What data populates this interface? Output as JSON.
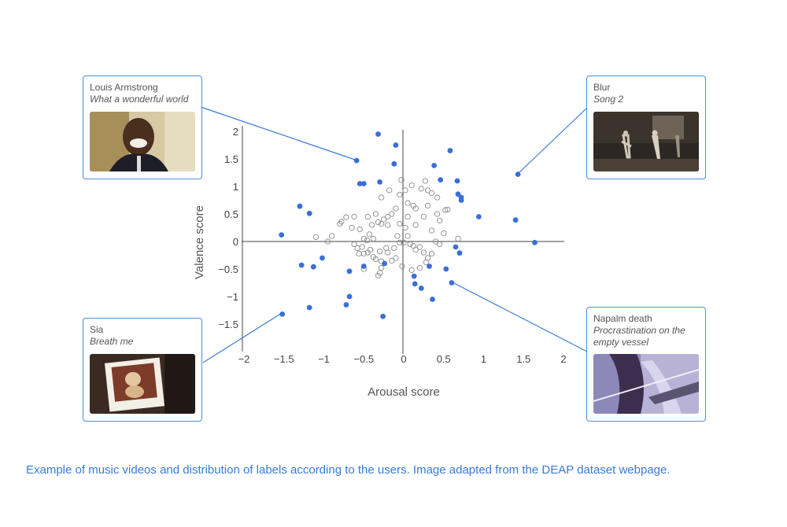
{
  "chart_data": {
    "type": "scatter",
    "xlabel": "Arousal score",
    "ylabel": "Valence score",
    "xlim": [
      -2,
      2
    ],
    "ylim": [
      -2,
      2
    ],
    "x_ticks": [
      "−2",
      "−1.5",
      "−1",
      "−0.5",
      "0",
      "0.5",
      "1",
      "1.5",
      "2"
    ],
    "y_ticks": [
      "−1.5",
      "−1",
      "−0.5",
      "0",
      "0.5",
      "1",
      "1.5",
      "2"
    ],
    "grid": false,
    "series": [
      {
        "marker": "filled",
        "color": "#3a6fd8",
        "points": [
          [
            -0.59,
            1.47
          ],
          [
            -0.55,
            1.05
          ],
          [
            -0.5,
            1.05
          ],
          [
            -0.32,
            1.95
          ],
          [
            -0.1,
            1.75
          ],
          [
            -0.12,
            1.41
          ],
          [
            0.38,
            1.38
          ],
          [
            0.58,
            1.65
          ],
          [
            0.46,
            1.12
          ],
          [
            0.67,
            1.1
          ],
          [
            0.68,
            0.86
          ],
          [
            0.72,
            0.8
          ],
          [
            0.72,
            0.75
          ],
          [
            0.94,
            0.45
          ],
          [
            1.4,
            0.39
          ],
          [
            1.43,
            1.22
          ],
          [
            1.64,
            -0.02
          ],
          [
            -1.3,
            0.64
          ],
          [
            -1.18,
            0.51
          ],
          [
            -1.53,
            0.12
          ],
          [
            -1.02,
            -0.3
          ],
          [
            -1.28,
            -0.43
          ],
          [
            -1.13,
            -0.46
          ],
          [
            -0.68,
            -0.54
          ],
          [
            -0.5,
            -0.45
          ],
          [
            -0.24,
            -0.4
          ],
          [
            -0.68,
            -1.0
          ],
          [
            -0.72,
            -1.15
          ],
          [
            -1.18,
            -1.2
          ],
          [
            -1.52,
            -1.32
          ],
          [
            -0.26,
            -1.36
          ],
          [
            0.32,
            -0.45
          ],
          [
            0.53,
            -0.5
          ],
          [
            0.65,
            -0.1
          ],
          [
            0.7,
            -0.21
          ],
          [
            0.6,
            -0.75
          ],
          [
            0.13,
            -0.63
          ],
          [
            0.14,
            -0.77
          ],
          [
            0.22,
            -0.85
          ],
          [
            0.36,
            -1.05
          ],
          [
            -0.3,
            1.08
          ]
        ]
      },
      {
        "marker": "open",
        "color": "#8a8a8a",
        "points": [
          [
            -0.03,
            1.12
          ],
          [
            -0.05,
            0.85
          ],
          [
            0.02,
            0.93
          ],
          [
            -0.18,
            0.93
          ],
          [
            -0.28,
            0.8
          ],
          [
            -0.35,
            0.5
          ],
          [
            -0.45,
            0.45
          ],
          [
            -0.2,
            0.45
          ],
          [
            -0.1,
            0.6
          ],
          [
            0.1,
            1.02
          ],
          [
            0.22,
            0.96
          ],
          [
            0.27,
            1.1
          ],
          [
            0.3,
            0.93
          ],
          [
            0.35,
            0.88
          ],
          [
            0.15,
            0.6
          ],
          [
            0.12,
            0.65
          ],
          [
            0.3,
            0.65
          ],
          [
            0.42,
            0.5
          ],
          [
            0.42,
            0.8
          ],
          [
            0.52,
            0.57
          ],
          [
            0.55,
            0.58
          ],
          [
            0.05,
            0.45
          ],
          [
            0.02,
            0.25
          ],
          [
            -0.05,
            0.32
          ],
          [
            0.15,
            0.3
          ],
          [
            0.45,
            0.38
          ],
          [
            -0.62,
            0.45
          ],
          [
            -0.78,
            0.36
          ],
          [
            -0.9,
            0.1
          ],
          [
            -0.72,
            0.44
          ],
          [
            -0.8,
            0.32
          ],
          [
            -0.65,
            0.25
          ],
          [
            -0.55,
            0.22
          ],
          [
            -0.4,
            0.3
          ],
          [
            -0.32,
            0.35
          ],
          [
            -0.28,
            0.32
          ],
          [
            -0.2,
            0.3
          ],
          [
            -0.43,
            0.13
          ],
          [
            -0.38,
            0.05
          ],
          [
            -0.46,
            0.02
          ],
          [
            -0.52,
            -0.1
          ],
          [
            -0.58,
            -0.12
          ],
          [
            -0.56,
            -0.22
          ],
          [
            -0.5,
            -0.22
          ],
          [
            -0.45,
            -0.2
          ],
          [
            -0.42,
            -0.15
          ],
          [
            -0.38,
            -0.28
          ],
          [
            -0.35,
            -0.32
          ],
          [
            -0.3,
            -0.18
          ],
          [
            -0.28,
            -0.36
          ],
          [
            -0.22,
            -0.12
          ],
          [
            -0.2,
            -0.2
          ],
          [
            -0.12,
            -0.12
          ],
          [
            -0.1,
            -0.3
          ],
          [
            0.05,
            0.1
          ],
          [
            0.08,
            -0.05
          ],
          [
            0.12,
            -0.08
          ],
          [
            0.15,
            -0.15
          ],
          [
            0.2,
            -0.1
          ],
          [
            0.25,
            -0.2
          ],
          [
            0.3,
            -0.3
          ],
          [
            0.35,
            -0.22
          ],
          [
            0.28,
            -0.38
          ],
          [
            0.2,
            -0.48
          ],
          [
            0.1,
            -0.52
          ],
          [
            -0.02,
            -0.45
          ],
          [
            -0.15,
            -0.35
          ],
          [
            -0.28,
            -0.48
          ],
          [
            -0.3,
            -0.57
          ],
          [
            -0.32,
            -0.62
          ],
          [
            -0.5,
            -0.5
          ],
          [
            -0.95,
            0.0
          ],
          [
            -1.1,
            0.08
          ],
          [
            -0.25,
            0.4
          ],
          [
            -0.08,
            0.1
          ],
          [
            0.4,
            0.0
          ],
          [
            0.45,
            -0.05
          ],
          [
            0.68,
            0.05
          ],
          [
            0.0,
            -0.02
          ],
          [
            -0.05,
            -0.02
          ],
          [
            0.35,
            0.2
          ],
          [
            0.5,
            0.15
          ],
          [
            0.25,
            0.45
          ],
          [
            -0.15,
            0.5
          ],
          [
            0.05,
            0.7
          ],
          [
            -0.5,
            0.05
          ],
          [
            -0.62,
            -0.05
          ]
        ]
      }
    ]
  },
  "cards": [
    {
      "id": "armstrong",
      "artist": "Louis Armstrong",
      "song": "What a wonderful world"
    },
    {
      "id": "blur",
      "artist": "Blur",
      "song": "Song 2"
    },
    {
      "id": "sia",
      "artist": "Sia",
      "song": "Breath me"
    },
    {
      "id": "napalm",
      "artist": "Napalm death",
      "song": "Procrastination on the empty vessel"
    }
  ],
  "caption": "Example of music videos and distribution of labels according to the users. Image adapted from the DEAP dataset webpage.",
  "colors": {
    "accent": "#4a90d9",
    "caption": "#3a7bd5",
    "filled_marker": "#3a6fd8"
  }
}
